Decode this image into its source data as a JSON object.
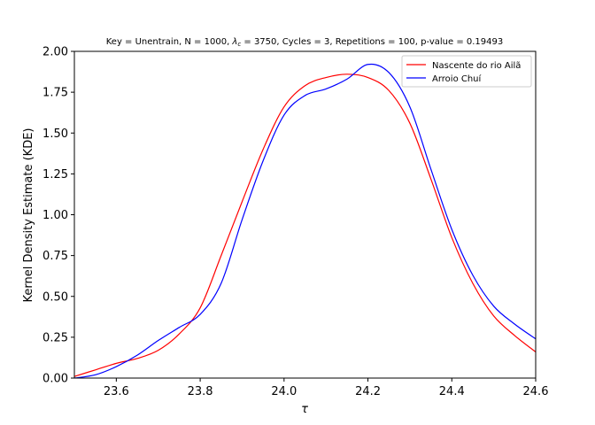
{
  "chart_data": {
    "type": "line",
    "title_parts": {
      "prefix": "Key = Unentrain, N = 1000, ",
      "lambda_symbol": "λ",
      "lambda_sub": "c",
      "suffix": " = 3750, Cycles = 3, Repetitions = 100, p-value = 0.19493"
    },
    "xlabel": "τ",
    "ylabel": "Kernel Density Estimate (KDE)",
    "xlim": [
      23.5,
      24.6
    ],
    "ylim": [
      0.0,
      2.0
    ],
    "x_ticks": [
      "23.6",
      "23.8",
      "24.0",
      "24.2",
      "24.4",
      "24.6"
    ],
    "y_ticks": [
      "0.00",
      "0.25",
      "0.50",
      "0.75",
      "1.00",
      "1.25",
      "1.50",
      "1.75",
      "2.00"
    ],
    "grid": false,
    "legend_position": "top-right",
    "series": [
      {
        "name": "Nascente do rio Ailã",
        "color": "#ff0000",
        "x": [
          23.5,
          23.55,
          23.6,
          23.65,
          23.7,
          23.75,
          23.8,
          23.85,
          23.9,
          23.95,
          24.0,
          24.05,
          24.1,
          24.15,
          24.2,
          24.25,
          24.3,
          24.35,
          24.4,
          24.45,
          24.5,
          24.55,
          24.6
        ],
        "y": [
          0.01,
          0.05,
          0.09,
          0.12,
          0.17,
          0.27,
          0.43,
          0.75,
          1.08,
          1.4,
          1.66,
          1.79,
          1.84,
          1.86,
          1.84,
          1.76,
          1.56,
          1.22,
          0.86,
          0.58,
          0.38,
          0.26,
          0.16
        ]
      },
      {
        "name": "Arroio Chuí",
        "color": "#0000ff",
        "x": [
          23.5,
          23.55,
          23.6,
          23.65,
          23.7,
          23.75,
          23.8,
          23.85,
          23.9,
          23.95,
          24.0,
          24.05,
          24.1,
          24.15,
          24.2,
          24.25,
          24.3,
          24.35,
          24.4,
          24.45,
          24.5,
          24.55,
          24.6
        ],
        "y": [
          0.0,
          0.02,
          0.07,
          0.14,
          0.23,
          0.31,
          0.39,
          0.58,
          0.97,
          1.33,
          1.61,
          1.73,
          1.77,
          1.83,
          1.92,
          1.87,
          1.66,
          1.28,
          0.91,
          0.63,
          0.44,
          0.33,
          0.24
        ]
      }
    ]
  }
}
